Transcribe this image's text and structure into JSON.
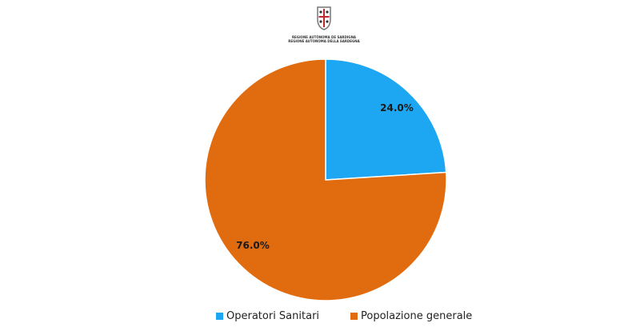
{
  "logo": {
    "lines": [
      "REGIONE AUTÒNOMA DE SARDIGNA",
      "REGIONE AUTONOMA DELLA SARDEGNA"
    ]
  },
  "chart_data": {
    "type": "pie",
    "categories": [
      "Operatori Sanitari",
      "Popolazione generale"
    ],
    "values": [
      24.0,
      76.0
    ],
    "data_labels": [
      "24.0%",
      "76.0%"
    ],
    "colors": [
      "#1da6f2",
      "#e06c0f"
    ],
    "legend": "bottom",
    "start": "12 o'clock, clockwise"
  }
}
